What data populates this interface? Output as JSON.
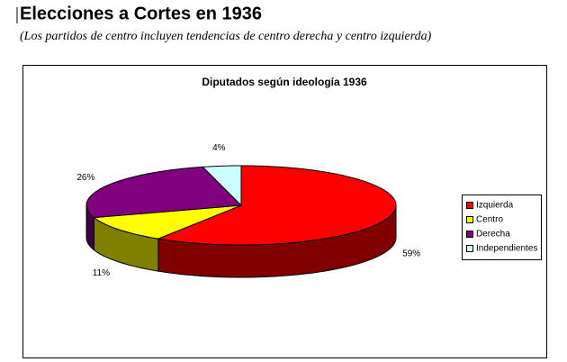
{
  "header": {
    "title": "Elecciones a Cortes en 1936",
    "subtitle": "(Los partidos de centro incluyen tendencias de centro derecha y centro izquierda)"
  },
  "chart_data": {
    "type": "pie",
    "title": "Diputados según ideología 1936",
    "categories": [
      "Izquierda",
      "Centro",
      "Derecha",
      "Independientes"
    ],
    "values": [
      59,
      11,
      26,
      4
    ],
    "value_labels": [
      "59%",
      "11%",
      "26%",
      "4%"
    ],
    "colors": [
      "#ff0000",
      "#ffff00",
      "#800080",
      "#ccffff"
    ],
    "legend": "right"
  }
}
